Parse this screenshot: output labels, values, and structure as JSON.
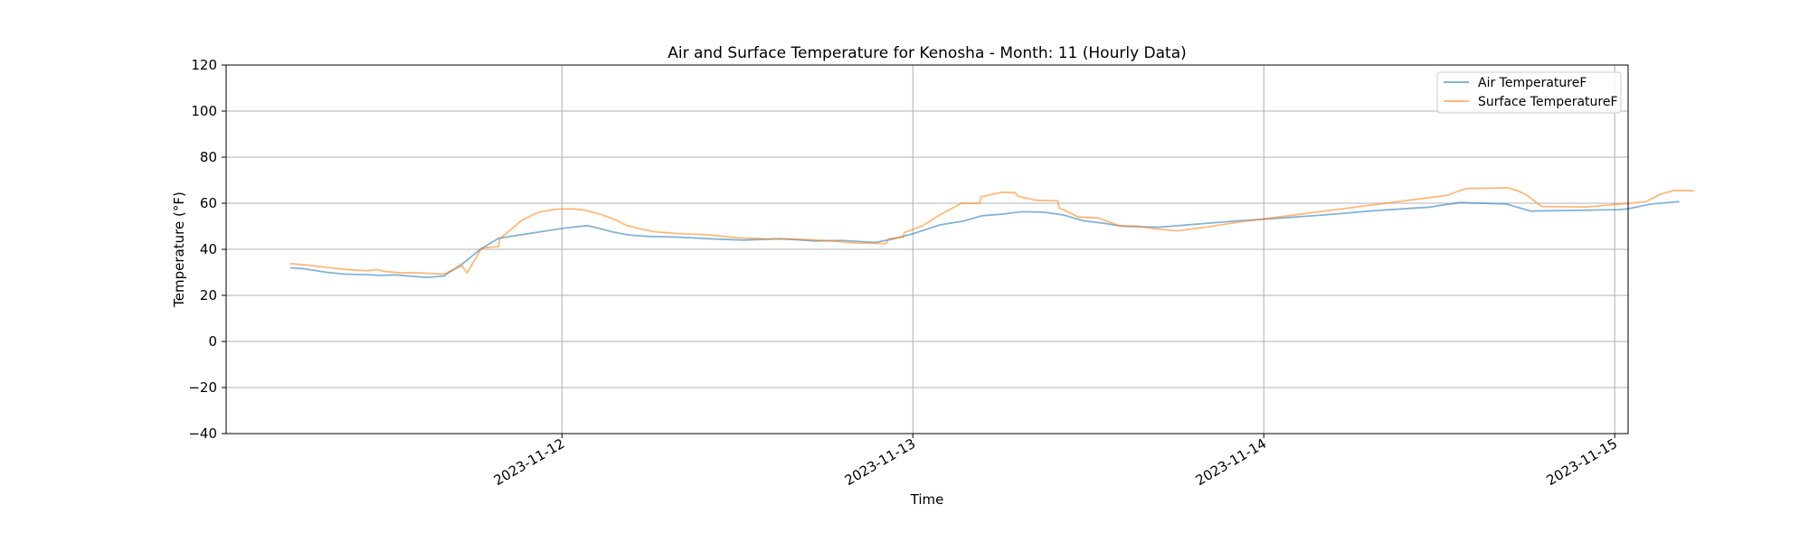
{
  "chart_data": {
    "type": "line",
    "title": "Air and Surface Temperature for Kenosha - Month: 11 (Hourly Data)",
    "xlabel": "Time",
    "ylabel": "Temperature (°F)",
    "ylim": [
      -40,
      120
    ],
    "yticks": [
      -40,
      -20,
      0,
      20,
      40,
      60,
      80,
      100,
      120
    ],
    "xlim": [
      "2023-11-11T01:02",
      "2023-11-15T00:55"
    ],
    "xticks": [
      "2023-11-12",
      "2023-11-13",
      "2023-11-14",
      "2023-11-15"
    ],
    "grid": true,
    "legend_position": "upper right",
    "series": [
      {
        "name": "Air TemperatureF",
        "color": "#1f77b4",
        "points": [
          [
            "2023-11-11T05:25",
            32.0
          ],
          [
            "2023-11-11T06:25",
            31.5
          ],
          [
            "2023-11-11T07:55",
            30.0
          ],
          [
            "2023-11-11T09:10",
            29.2
          ],
          [
            "2023-11-11T10:35",
            29.0
          ],
          [
            "2023-11-11T11:35",
            28.7
          ],
          [
            "2023-11-11T12:40",
            28.9
          ],
          [
            "2023-11-11T13:35",
            28.4
          ],
          [
            "2023-11-11T14:45",
            27.8
          ],
          [
            "2023-11-11T15:55",
            28.4
          ],
          [
            "2023-11-11T17:15",
            34.0
          ],
          [
            "2023-11-11T18:25",
            40.0
          ],
          [
            "2023-11-11T19:40",
            44.8
          ],
          [
            "2023-11-11T21:05",
            46.2
          ],
          [
            "2023-11-11T22:55",
            48.0
          ],
          [
            "2023-11-12T00:10",
            49.2
          ],
          [
            "2023-11-12T01:45",
            50.3
          ],
          [
            "2023-11-12T02:35",
            49.0
          ],
          [
            "2023-11-12T03:25",
            47.6
          ],
          [
            "2023-11-12T04:35",
            46.2
          ],
          [
            "2023-11-12T05:55",
            45.6
          ],
          [
            "2023-11-12T07:55",
            45.3
          ],
          [
            "2023-11-12T10:05",
            44.6
          ],
          [
            "2023-11-12T12:25",
            44.0
          ],
          [
            "2023-11-12T14:55",
            44.6
          ],
          [
            "2023-11-12T17:25",
            43.6
          ],
          [
            "2023-11-12T19:05",
            43.9
          ],
          [
            "2023-11-12T21:25",
            43.0
          ],
          [
            "2023-11-12T22:40",
            44.5
          ],
          [
            "2023-11-13T00:05",
            46.9
          ],
          [
            "2023-11-13T01:50",
            50.6
          ],
          [
            "2023-11-13T03:25",
            52.2
          ],
          [
            "2023-11-13T04:45",
            54.6
          ],
          [
            "2023-11-13T06:10",
            55.3
          ],
          [
            "2023-11-13T07:25",
            56.3
          ],
          [
            "2023-11-13T08:55",
            56.1
          ],
          [
            "2023-11-13T10:15",
            55.0
          ],
          [
            "2023-11-13T11:40",
            52.4
          ],
          [
            "2023-11-13T13:05",
            51.3
          ],
          [
            "2023-11-13T14:20",
            50.0
          ],
          [
            "2023-11-13T16:50",
            49.6
          ],
          [
            "2023-11-13T22:05",
            52.3
          ],
          [
            "2023-11-14T00:20",
            53.2
          ],
          [
            "2023-11-14T04:05",
            54.9
          ],
          [
            "2023-11-14T07:35",
            56.8
          ],
          [
            "2023-11-14T11:20",
            58.3
          ],
          [
            "2023-11-14T13:25",
            60.3
          ],
          [
            "2023-11-14T16:35",
            59.7
          ],
          [
            "2023-11-14T18:15",
            56.6
          ],
          [
            "2023-11-15T00:15",
            57.2
          ],
          [
            "2023-11-15T00:55",
            57.6
          ],
          [
            "2023-11-15T02:25",
            59.6
          ],
          [
            "2023-11-15T04:25",
            60.7
          ]
        ]
      },
      {
        "name": "Surface TemperatureF",
        "color": "#ff7f0e",
        "points": [
          [
            "2023-11-11T05:25",
            33.8
          ],
          [
            "2023-11-11T06:50",
            33.0
          ],
          [
            "2023-11-11T08:05",
            32.0
          ],
          [
            "2023-11-11T09:10",
            31.3
          ],
          [
            "2023-11-11T10:00",
            30.9
          ],
          [
            "2023-11-11T10:45",
            30.7
          ],
          [
            "2023-11-11T11:20",
            31.2
          ],
          [
            "2023-11-11T11:45",
            30.5
          ],
          [
            "2023-11-11T12:55",
            29.8
          ],
          [
            "2023-11-11T13:55",
            29.9
          ],
          [
            "2023-11-11T15:55",
            29.2
          ],
          [
            "2023-11-11T17:10",
            33.0
          ],
          [
            "2023-11-11T17:30",
            29.7
          ],
          [
            "2023-11-11T18:30",
            40.5
          ],
          [
            "2023-11-11T19:40",
            41.2
          ],
          [
            "2023-11-11T19:45",
            44.6
          ],
          [
            "2023-11-11T21:15",
            52.6
          ],
          [
            "2023-11-11T22:20",
            56.0
          ],
          [
            "2023-11-11T23:35",
            57.4
          ],
          [
            "2023-11-12T00:45",
            57.6
          ],
          [
            "2023-11-12T01:35",
            57.0
          ],
          [
            "2023-11-12T02:45",
            55.0
          ],
          [
            "2023-11-12T03:40",
            52.8
          ],
          [
            "2023-11-12T04:25",
            50.4
          ],
          [
            "2023-11-12T05:25",
            48.8
          ],
          [
            "2023-11-12T06:20",
            47.6
          ],
          [
            "2023-11-12T07:45",
            46.9
          ],
          [
            "2023-11-12T09:55",
            46.3
          ],
          [
            "2023-11-12T12:05",
            45.0
          ],
          [
            "2023-11-12T14:00",
            44.5
          ],
          [
            "2023-11-12T16:00",
            44.4
          ],
          [
            "2023-11-12T18:05",
            43.8
          ],
          [
            "2023-11-12T20:00",
            42.8
          ],
          [
            "2023-11-12T22:10",
            42.5
          ],
          [
            "2023-11-12T22:20",
            44.6
          ],
          [
            "2023-11-12T23:20",
            45.3
          ],
          [
            "2023-11-12T23:25",
            47.3
          ],
          [
            "2023-11-13T00:40",
            50.2
          ],
          [
            "2023-11-13T01:50",
            55.0
          ],
          [
            "2023-11-13T03:20",
            60.0
          ],
          [
            "2023-11-13T04:35",
            60.0
          ],
          [
            "2023-11-13T04:40",
            62.8
          ],
          [
            "2023-11-13T06:05",
            64.8
          ],
          [
            "2023-11-13T07:00",
            64.6
          ],
          [
            "2023-11-13T07:10",
            63.0
          ],
          [
            "2023-11-13T08:25",
            61.3
          ],
          [
            "2023-11-13T09:55",
            61.0
          ],
          [
            "2023-11-13T10:00",
            58.0
          ],
          [
            "2023-11-13T11:20",
            54.0
          ],
          [
            "2023-11-13T12:40",
            53.6
          ],
          [
            "2023-11-13T14:05",
            50.3
          ],
          [
            "2023-11-13T15:25",
            50.0
          ],
          [
            "2023-11-13T16:25",
            49.0
          ],
          [
            "2023-11-13T18:05",
            48.0
          ],
          [
            "2023-11-13T20:00",
            49.6
          ],
          [
            "2023-11-13T22:30",
            52.0
          ],
          [
            "2023-11-14T12:30",
            63.4
          ],
          [
            "2023-11-14T13:50",
            66.4
          ],
          [
            "2023-11-14T15:25",
            66.5
          ],
          [
            "2023-11-14T16:40",
            66.7
          ],
          [
            "2023-11-14T17:20",
            65.5
          ],
          [
            "2023-11-14T18:00",
            63.5
          ],
          [
            "2023-11-14T19:00",
            58.6
          ],
          [
            "2023-11-14T22:05",
            58.4
          ],
          [
            "2023-11-15T02:05",
            60.6
          ],
          [
            "2023-11-15T03:05",
            63.8
          ],
          [
            "2023-11-15T04:05",
            65.6
          ],
          [
            "2023-11-15T05:25",
            65.4
          ]
        ]
      }
    ]
  }
}
